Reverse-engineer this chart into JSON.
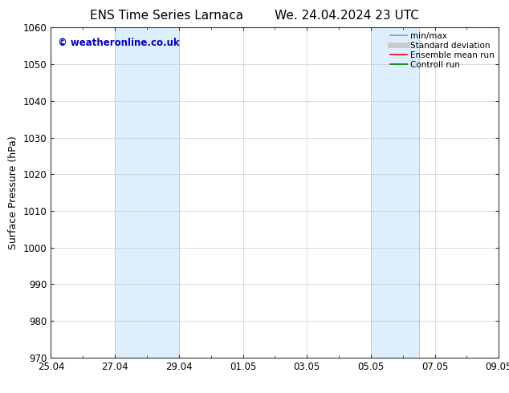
{
  "title1": "ENS Time Series Larnaca",
  "title2": "We. 24.04.2024 23 UTC",
  "ylabel": "Surface Pressure (hPa)",
  "ylim": [
    970,
    1060
  ],
  "yticks": [
    970,
    980,
    990,
    1000,
    1010,
    1020,
    1030,
    1040,
    1050,
    1060
  ],
  "xtick_labels": [
    "25.04",
    "27.04",
    "29.04",
    "01.05",
    "03.05",
    "05.05",
    "07.05",
    "09.05"
  ],
  "xtick_positions": [
    0,
    2,
    4,
    6,
    8,
    10,
    12,
    14
  ],
  "xlim": [
    0,
    14
  ],
  "shaded_bands": [
    {
      "x_start": 2,
      "x_end": 4
    },
    {
      "x_start": 10,
      "x_end": 11.5
    }
  ],
  "shaded_color": "#ddeeff",
  "shaded_edge_color": "#aaccee",
  "watermark_text": "© weatheronline.co.uk",
  "watermark_color": "#0000cc",
  "background_color": "#ffffff",
  "legend_items": [
    {
      "label": "min/max",
      "color": "#999999",
      "lw": 1.2
    },
    {
      "label": "Standard deviation",
      "color": "#cccccc",
      "lw": 5
    },
    {
      "label": "Ensemble mean run",
      "color": "#ff0000",
      "lw": 1.2
    },
    {
      "label": "Controll run",
      "color": "#007700",
      "lw": 1.2
    }
  ],
  "title_fontsize": 11,
  "ylabel_fontsize": 9,
  "tick_fontsize": 8.5,
  "watermark_fontsize": 8.5,
  "legend_fontsize": 7.5
}
